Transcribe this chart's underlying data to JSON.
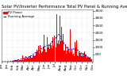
{
  "title": "Solar PV/Inverter Performance Total PV Panel & Running Average Power Output",
  "legend_pv": "PV Power",
  "legend_avg": "Running Average",
  "background_color": "#ffffff",
  "plot_bg_color": "#ffffff",
  "bar_color": "#ff0000",
  "avg_line_color": "#0000ff",
  "grid_color": "#bbbbbb",
  "n_points": 300,
  "ylim": [
    0,
    3600
  ],
  "yticks": [
    500,
    1000,
    1500,
    2000,
    2500,
    3000,
    3500
  ],
  "title_fontsize": 3.8,
  "tick_fontsize": 3.0,
  "legend_fontsize": 2.8
}
